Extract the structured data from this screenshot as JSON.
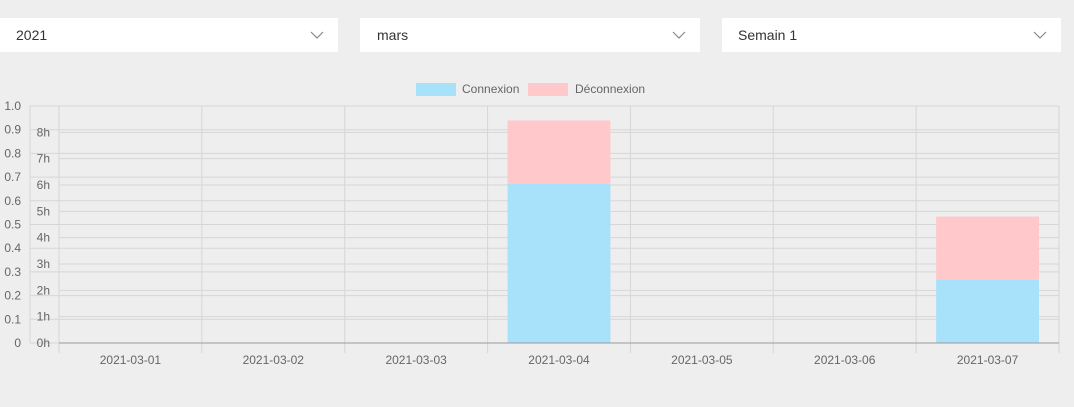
{
  "filters": {
    "year": "2021",
    "month": "mars",
    "week": "Semain 1",
    "chevron_icon": "chevron-down-icon"
  },
  "colors": {
    "connexion": "#a8e1fa",
    "deconnexion": "#ffc8cb",
    "grid": "#d6d6d6",
    "axis": "#9a9a9a",
    "tick_text": "#666666"
  },
  "chart_data": {
    "type": "bar",
    "stacked": true,
    "categories": [
      "2021-03-01",
      "2021-03-02",
      "2021-03-03",
      "2021-03-04",
      "2021-03-05",
      "2021-03-06",
      "2021-03-07"
    ],
    "series": [
      {
        "name": "Connexion",
        "values": [
          0,
          0,
          0,
          6.05,
          0,
          0,
          2.4
        ],
        "axis": "right"
      },
      {
        "name": "Déconnexion",
        "values": [
          0,
          0,
          0,
          2.4,
          0,
          0,
          2.4
        ],
        "axis": "right"
      }
    ],
    "left_axis": {
      "min": 0,
      "max": 1.0,
      "ticks": [
        "0",
        "0.1",
        "0.2",
        "0.3",
        "0.4",
        "0.5",
        "0.6",
        "0.7",
        "0.8",
        "0.9",
        "1.0"
      ]
    },
    "right_axis": {
      "min": 0,
      "max": 9,
      "ticks": [
        "0h",
        "1h",
        "2h",
        "3h",
        "4h",
        "5h",
        "6h",
        "7h",
        "8h"
      ]
    },
    "title": "",
    "xlabel": "",
    "ylabel": "",
    "legend": "top-center",
    "grid": true
  }
}
